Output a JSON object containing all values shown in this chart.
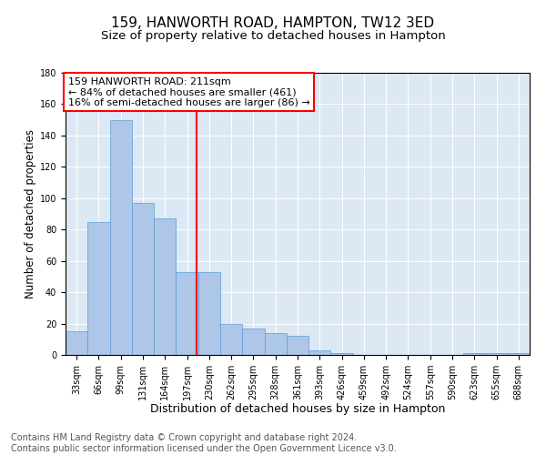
{
  "title": "159, HANWORTH ROAD, HAMPTON, TW12 3ED",
  "subtitle": "Size of property relative to detached houses in Hampton",
  "xlabel": "Distribution of detached houses by size in Hampton",
  "ylabel": "Number of detached properties",
  "footer1": "Contains HM Land Registry data © Crown copyright and database right 2024.",
  "footer2": "Contains public sector information licensed under the Open Government Licence v3.0.",
  "bar_labels": [
    "33sqm",
    "66sqm",
    "99sqm",
    "131sqm",
    "164sqm",
    "197sqm",
    "230sqm",
    "262sqm",
    "295sqm",
    "328sqm",
    "361sqm",
    "393sqm",
    "426sqm",
    "459sqm",
    "492sqm",
    "524sqm",
    "557sqm",
    "590sqm",
    "623sqm",
    "655sqm",
    "688sqm"
  ],
  "bar_values": [
    15,
    85,
    150,
    97,
    87,
    53,
    53,
    20,
    17,
    14,
    12,
    3,
    1,
    0,
    0,
    0,
    0,
    0,
    1,
    1,
    1
  ],
  "bar_color": "#aec6e8",
  "bar_edge_color": "#5b9bd5",
  "annotation_text_line1": "159 HANWORTH ROAD: 211sqm",
  "annotation_text_line2": "← 84% of detached houses are smaller (461)",
  "annotation_text_line3": "16% of semi-detached houses are larger (86) →",
  "ylim": [
    0,
    180
  ],
  "yticks": [
    0,
    20,
    40,
    60,
    80,
    100,
    120,
    140,
    160,
    180
  ],
  "plot_bg_color": "#dce9f5",
  "grid_color": "white",
  "title_fontsize": 11,
  "subtitle_fontsize": 9.5,
  "xlabel_fontsize": 9,
  "ylabel_fontsize": 8.5,
  "tick_fontsize": 7,
  "footer_fontsize": 7,
  "ann_fontsize": 8
}
